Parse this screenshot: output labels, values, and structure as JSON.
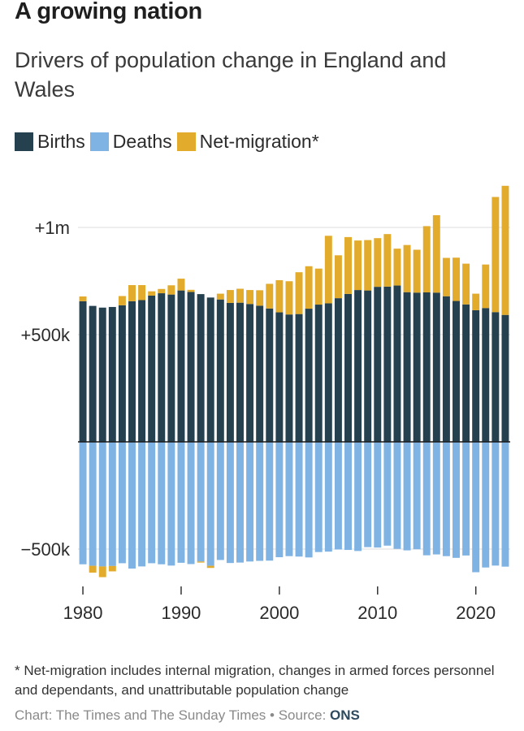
{
  "header": {
    "title": "A growing nation",
    "subtitle": "Drivers of population change in England and Wales"
  },
  "legend": [
    {
      "label": "Births",
      "color": "#25404f"
    },
    {
      "label": "Deaths",
      "color": "#7fb3e3"
    },
    {
      "label": "Net-migration*",
      "color": "#e2ab2b"
    }
  ],
  "footer": {
    "footnote": "* Net-migration includes internal migration, changes in armed forces personnel and dependants, and unattributable population change",
    "credit_prefix": "Chart: The Times and The Sunday Times • Source: ",
    "credit_source": "ONS"
  },
  "chart_data": {
    "type": "bar",
    "stacked": true,
    "x": [
      1980,
      1981,
      1982,
      1983,
      1984,
      1985,
      1986,
      1987,
      1988,
      1989,
      1990,
      1991,
      1992,
      1993,
      1994,
      1995,
      1996,
      1997,
      1998,
      1999,
      2000,
      2001,
      2002,
      2003,
      2004,
      2005,
      2006,
      2007,
      2008,
      2009,
      2010,
      2011,
      2012,
      2013,
      2014,
      2015,
      2016,
      2017,
      2018,
      2019,
      2020,
      2021,
      2022,
      2023
    ],
    "xticks": [
      1980,
      1990,
      2000,
      2010,
      2020
    ],
    "ylim": [
      -700000,
      1200000
    ],
    "yticks": [
      {
        "value": 1000000,
        "label": "+1m"
      },
      {
        "value": 500000,
        "label": "+500k"
      },
      {
        "value": -500000,
        "label": "−500k"
      }
    ],
    "grid": true,
    "legend_position": "top-left",
    "series": [
      {
        "name": "Births",
        "color": "#25404f",
        "values": [
          656000,
          634000,
          626000,
          629000,
          637000,
          656000,
          661000,
          682000,
          693000,
          687000,
          706000,
          699000,
          689000,
          673000,
          664000,
          648000,
          649000,
          643000,
          635000,
          622000,
          604000,
          594000,
          596000,
          621000,
          640000,
          646000,
          670000,
          690000,
          708000,
          706000,
          723000,
          724000,
          729000,
          698000,
          696000,
          697000,
          696000,
          679000,
          657000,
          641000,
          614000,
          624000,
          605000,
          592000
        ]
      },
      {
        "name": "Deaths",
        "color": "#7fb3e3",
        "values": [
          -571000,
          -578000,
          -581000,
          -579000,
          -566000,
          -591000,
          -581000,
          -566000,
          -571000,
          -577000,
          -564000,
          -570000,
          -558000,
          -578000,
          -551000,
          -565000,
          -563000,
          -558000,
          -555000,
          -554000,
          -538000,
          -533000,
          -535000,
          -539000,
          -514000,
          -512000,
          -502000,
          -504000,
          -509000,
          -491000,
          -493000,
          -484000,
          -499000,
          -506000,
          -501000,
          -529000,
          -525000,
          -533000,
          -541000,
          -530000,
          -608000,
          -586000,
          -577000,
          -582000
        ]
      },
      {
        "name": "Net-migration*",
        "color": "#e2ab2b",
        "values": [
          22000,
          -32000,
          -50000,
          -25000,
          43000,
          75000,
          70000,
          20000,
          20000,
          43000,
          55000,
          10000,
          -5000,
          -10000,
          27000,
          60000,
          65000,
          65000,
          72000,
          115000,
          150000,
          155000,
          195000,
          198000,
          168000,
          315000,
          200000,
          265000,
          231000,
          235000,
          227000,
          245000,
          172000,
          220000,
          200000,
          309000,
          361000,
          179000,
          202000,
          190000,
          77000,
          203000,
          537000,
          602000
        ]
      }
    ]
  }
}
